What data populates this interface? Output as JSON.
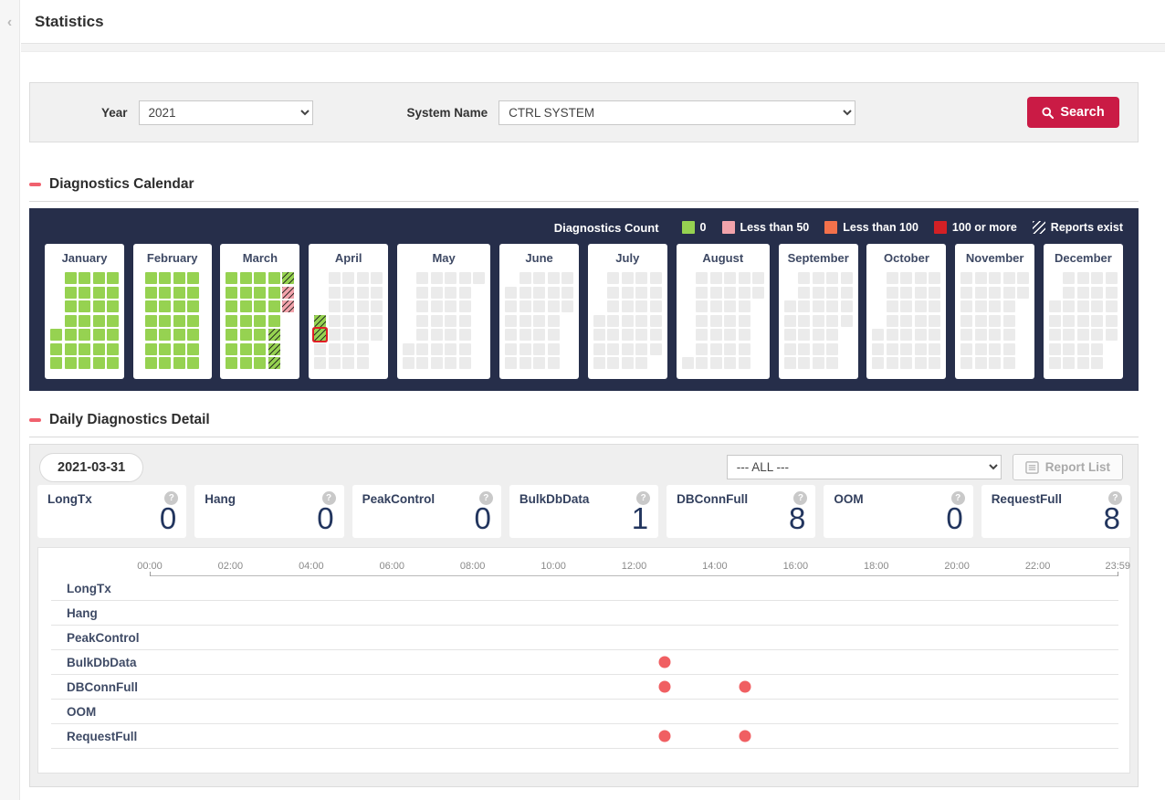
{
  "header": {
    "title": "Statistics",
    "back_icon": "‹"
  },
  "filters": {
    "year_label": "Year",
    "year_value": "2021",
    "system_label": "System Name",
    "system_value": "CTRL  SYSTEM",
    "search_label": "Search"
  },
  "calendar_section": {
    "title": "Diagnostics Calendar",
    "legend_title": "Diagnostics Count",
    "legend": [
      {
        "label": "0",
        "state": "zero"
      },
      {
        "label": "Less than 50",
        "state": "lt50"
      },
      {
        "label": "Less than 100",
        "state": "lt100"
      },
      {
        "label": "100 or more",
        "state": "gte100"
      },
      {
        "label": "Reports exist",
        "state": "hatch"
      }
    ],
    "year": 2021,
    "months": [
      {
        "name": "January",
        "index": 0,
        "default_state": "zero",
        "special_days": {}
      },
      {
        "name": "February",
        "index": 1,
        "default_state": "zero",
        "special_days": {}
      },
      {
        "name": "March",
        "index": 2,
        "default_state": "zero",
        "special_days": {
          "26": "zero hatch",
          "27": "zero hatch",
          "28": "zero hatch",
          "29": "zero hatch",
          "30": "lt50 hatch",
          "31": "lt50 hatch"
        }
      },
      {
        "name": "April",
        "index": 3,
        "default_state": "empty",
        "special_days": {
          "1": "zero hatch",
          "2": "zero hatch selected"
        }
      },
      {
        "name": "May",
        "index": 4,
        "default_state": "empty",
        "special_days": {}
      },
      {
        "name": "June",
        "index": 5,
        "default_state": "empty",
        "special_days": {}
      },
      {
        "name": "July",
        "index": 6,
        "default_state": "empty",
        "special_days": {}
      },
      {
        "name": "August",
        "index": 7,
        "default_state": "empty",
        "special_days": {}
      },
      {
        "name": "September",
        "index": 8,
        "default_state": "empty",
        "special_days": {}
      },
      {
        "name": "October",
        "index": 9,
        "default_state": "empty",
        "special_days": {}
      },
      {
        "name": "November",
        "index": 10,
        "default_state": "empty",
        "special_days": {}
      },
      {
        "name": "December",
        "index": 11,
        "default_state": "empty",
        "special_days": {}
      }
    ]
  },
  "detail_section": {
    "title": "Daily Diagnostics Detail",
    "date": "2021-03-31",
    "filter_value": "--- ALL ---",
    "report_list_label": "Report List",
    "help_glyph": "?",
    "metrics": [
      {
        "label": "LongTx",
        "value": "0"
      },
      {
        "label": "Hang",
        "value": "0"
      },
      {
        "label": "PeakControl",
        "value": "0"
      },
      {
        "label": "BulkDbData",
        "value": "1"
      },
      {
        "label": "DBConnFull",
        "value": "8"
      },
      {
        "label": "OOM",
        "value": "0"
      },
      {
        "label": "RequestFull",
        "value": "8"
      }
    ]
  },
  "chart_data": {
    "type": "scatter",
    "title": "Daily diagnostics event timeline",
    "x_axis": {
      "ticks": [
        "00:00",
        "02:00",
        "04:00",
        "06:00",
        "08:00",
        "10:00",
        "12:00",
        "14:00",
        "16:00",
        "18:00",
        "20:00",
        "22:00",
        "23:59"
      ],
      "range": [
        "00:00",
        "23:59"
      ],
      "grid": false
    },
    "rows": [
      {
        "label": "LongTx",
        "events": []
      },
      {
        "label": "Hang",
        "events": []
      },
      {
        "label": "PeakControl",
        "events": []
      },
      {
        "label": "BulkDbData",
        "events": [
          "12:45"
        ]
      },
      {
        "label": "DBConnFull",
        "events": [
          "12:45",
          "14:45"
        ]
      },
      {
        "label": "OOM",
        "events": []
      },
      {
        "label": "RequestFull",
        "events": [
          "12:45",
          "14:45"
        ]
      }
    ],
    "dot_color": "#f05f62"
  },
  "colors": {
    "accent_crimson": "#ca1b45",
    "panel_navy": "#262e4a",
    "count_zero": "#96d251",
    "count_lt50": "#f2a3ab",
    "count_lt100": "#f3714b",
    "count_gte100": "#d32025",
    "event_dot": "#f05f62",
    "section_dash": "#f0616e"
  }
}
